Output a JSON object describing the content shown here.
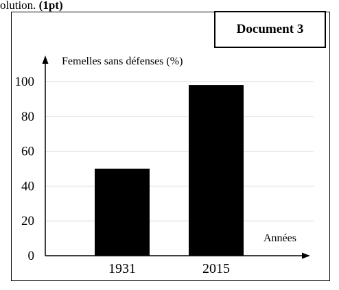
{
  "header": {
    "text": "olution.",
    "points": "(1pt)"
  },
  "doc_label": "Document 3",
  "chart_data": {
    "type": "bar",
    "ylabel": "Femelles sans défenses (%)",
    "xlabel": "Années",
    "categories": [
      "1931",
      "2015"
    ],
    "values": [
      50,
      98
    ],
    "ylim": [
      0,
      100
    ],
    "yticks": [
      0,
      20,
      40,
      60,
      80,
      100
    ],
    "bar_color": "#000000",
    "grid": true,
    "grid_color": "#d9d9d9"
  }
}
